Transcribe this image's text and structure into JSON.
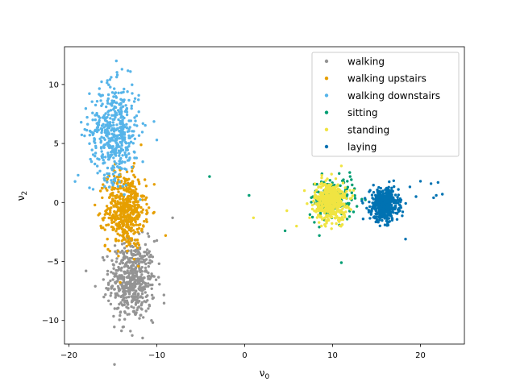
{
  "chart_data": {
    "type": "scatter",
    "title": "",
    "xlabel": "ν",
    "xlabel_sub": "0",
    "ylabel": "ν",
    "ylabel_sub": "2",
    "xlim": [
      -20.5,
      25
    ],
    "ylim": [
      -12,
      13.2
    ],
    "xticks": [
      -20,
      -10,
      0,
      10,
      20
    ],
    "yticks": [
      -10,
      -5,
      0,
      5,
      10
    ],
    "xtick_labels": [
      "−20",
      "−10",
      "0",
      "10",
      "20"
    ],
    "ytick_labels": [
      "−10",
      "−5",
      "0",
      "5",
      "10"
    ],
    "grid": false,
    "legend_position": "top-right",
    "series": [
      {
        "name": "walking",
        "color": "#949494",
        "center": [
          -12.8,
          -6.6
        ],
        "spread": [
          1.3,
          1.7
        ],
        "count": 520,
        "outliers": [
          [
            -8.2,
            -1.3
          ],
          [
            -13.0,
            -10.9
          ],
          [
            -17.0,
            -7.1
          ],
          [
            -10.6,
            -10.0
          ]
        ]
      },
      {
        "name": "walking upstairs",
        "color": "#e69f00",
        "center": [
          -13.6,
          -0.6
        ],
        "spread": [
          1.1,
          1.6
        ],
        "count": 520,
        "outliers": [
          [
            -9.0,
            -2.8
          ],
          [
            -15.5,
            2.4
          ],
          [
            -11.2,
            1.4
          ]
        ]
      },
      {
        "name": "walking downstairs",
        "color": "#56b4e9",
        "center": [
          -14.8,
          6.0
        ],
        "spread": [
          1.4,
          2.0
        ],
        "count": 480,
        "outliers": [
          [
            -18.6,
            6.8
          ],
          [
            -14.6,
            12.0
          ],
          [
            -13.0,
            11.1
          ],
          [
            -10.0,
            5.3
          ]
        ]
      },
      {
        "name": "sitting",
        "color": "#009e73",
        "center": [
          10.0,
          0.3
        ],
        "spread": [
          1.3,
          0.9
        ],
        "count": 170,
        "outliers": [
          [
            -4.0,
            2.2
          ],
          [
            0.5,
            0.6
          ],
          [
            4.6,
            -2.4
          ],
          [
            11.0,
            -5.1
          ],
          [
            8.5,
            -2.8
          ],
          [
            12.0,
            2.2
          ]
        ]
      },
      {
        "name": "standing",
        "color": "#f0e442",
        "center": [
          9.8,
          0.1
        ],
        "spread": [
          0.9,
          0.8
        ],
        "count": 520,
        "outliers": [
          [
            1.0,
            -1.3
          ],
          [
            4.8,
            -0.7
          ],
          [
            5.9,
            -2.0
          ],
          [
            6.8,
            1.0
          ],
          [
            11.0,
            3.1
          ]
        ]
      },
      {
        "name": "laying",
        "color": "#0072b2",
        "center": [
          15.9,
          -0.2
        ],
        "spread": [
          0.8,
          0.7
        ],
        "count": 430,
        "outliers": [
          [
            21.8,
            0.6
          ],
          [
            22.5,
            0.7
          ],
          [
            21.2,
            1.6
          ],
          [
            22.0,
            1.7
          ],
          [
            20.0,
            1.8
          ],
          [
            18.3,
            -3.1
          ],
          [
            19.5,
            0.5
          ],
          [
            21.5,
            0.4
          ]
        ]
      }
    ]
  }
}
